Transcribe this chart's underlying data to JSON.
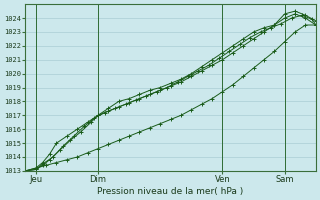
{
  "xlabel": "Pression niveau de la mer( hPa )",
  "bg_color": "#cce8ec",
  "plot_bg_color": "#cce8ec",
  "grid_color": "#aacdd4",
  "line_color": "#1a5c1a",
  "ylim": [
    1013,
    1025
  ],
  "xlim": [
    0,
    168
  ],
  "yticks": [
    1013,
    1014,
    1015,
    1016,
    1017,
    1018,
    1019,
    1020,
    1021,
    1022,
    1023,
    1024
  ],
  "day_labels": [
    "Jeu",
    "Dim",
    "Ven",
    "Sam"
  ],
  "day_positions": [
    6,
    42,
    114,
    150
  ],
  "vline_positions": [
    6,
    42,
    114,
    150
  ],
  "lines": [
    {
      "x": [
        0,
        6,
        12,
        18,
        24,
        30,
        36,
        42,
        48,
        54,
        60,
        66,
        72,
        78,
        84,
        90,
        96,
        102,
        108,
        114,
        120,
        126,
        132,
        138,
        144,
        150,
        156,
        162,
        168
      ],
      "y": [
        1013.0,
        1013.2,
        1013.4,
        1013.6,
        1013.8,
        1014.0,
        1014.3,
        1014.6,
        1014.9,
        1015.2,
        1015.5,
        1015.8,
        1016.1,
        1016.4,
        1016.7,
        1017.0,
        1017.4,
        1017.8,
        1018.2,
        1018.7,
        1019.2,
        1019.8,
        1020.4,
        1021.0,
        1021.6,
        1022.3,
        1023.0,
        1023.5,
        1023.5
      ]
    },
    {
      "x": [
        0,
        6,
        10,
        14,
        18,
        24,
        30,
        36,
        42,
        48,
        54,
        60,
        66,
        72,
        78,
        84,
        90,
        96,
        102,
        108,
        114,
        120,
        126,
        132,
        138,
        144,
        150,
        156,
        162,
        168
      ],
      "y": [
        1013.0,
        1013.2,
        1013.6,
        1014.2,
        1015.0,
        1015.5,
        1016.0,
        1016.5,
        1017.0,
        1017.3,
        1017.6,
        1017.9,
        1018.2,
        1018.5,
        1018.8,
        1019.1,
        1019.4,
        1019.8,
        1020.2,
        1020.6,
        1021.0,
        1021.5,
        1022.0,
        1022.5,
        1023.0,
        1023.5,
        1024.0,
        1024.3,
        1024.0,
        1023.5
      ]
    },
    {
      "x": [
        0,
        6,
        10,
        14,
        20,
        26,
        32,
        38,
        42,
        48,
        54,
        60,
        66,
        72,
        78,
        84,
        90,
        96,
        102,
        108,
        114,
        120,
        126,
        132,
        138,
        144,
        150,
        156,
        162,
        168
      ],
      "y": [
        1013.0,
        1013.1,
        1013.4,
        1013.8,
        1014.5,
        1015.2,
        1015.8,
        1016.5,
        1017.0,
        1017.5,
        1018.0,
        1018.2,
        1018.5,
        1018.8,
        1019.0,
        1019.3,
        1019.6,
        1020.0,
        1020.5,
        1021.0,
        1021.5,
        1022.0,
        1022.5,
        1023.0,
        1023.3,
        1023.5,
        1024.3,
        1024.5,
        1024.2,
        1023.8
      ]
    },
    {
      "x": [
        0,
        6,
        10,
        16,
        22,
        28,
        34,
        40,
        46,
        52,
        58,
        64,
        70,
        76,
        82,
        88,
        94,
        100,
        106,
        112,
        118,
        124,
        130,
        136,
        142,
        148,
        154,
        160,
        166,
        168
      ],
      "y": [
        1013.0,
        1013.1,
        1013.5,
        1014.0,
        1014.8,
        1015.5,
        1016.2,
        1016.8,
        1017.2,
        1017.5,
        1017.8,
        1018.1,
        1018.4,
        1018.7,
        1019.0,
        1019.4,
        1019.8,
        1020.2,
        1020.6,
        1021.1,
        1021.6,
        1022.1,
        1022.6,
        1023.0,
        1023.3,
        1023.6,
        1024.0,
        1024.2,
        1023.9,
        1023.5
      ]
    }
  ]
}
